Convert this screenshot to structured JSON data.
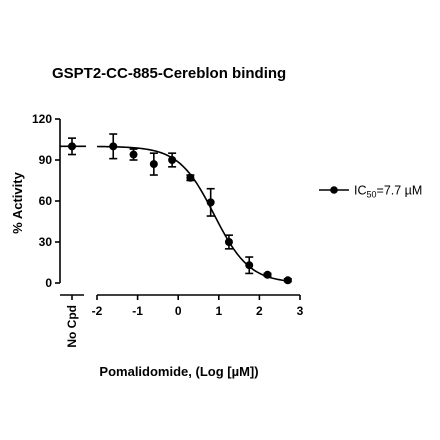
{
  "chart_data": {
    "type": "scatter",
    "title": "GSPT2-CC-885-Cereblon binding",
    "xlabel": "Pomalidomide, (Log [µM])",
    "ylabel": "% Activity",
    "xlim": [
      -2,
      3
    ],
    "ylim": [
      0,
      120
    ],
    "xticks": [
      "-2",
      "-1",
      "0",
      "1",
      "2",
      "3"
    ],
    "yticks": [
      "0",
      "30",
      "60",
      "90",
      "120"
    ],
    "control": {
      "label": "No Cpd",
      "value": 100,
      "error": 6
    },
    "series": [
      {
        "legend_prefix": "IC",
        "legend_sub": "50",
        "legend_suffix": "=7.7 µM",
        "ic50_log": 0.886,
        "hill_slope": -1,
        "top": 100,
        "bottom": 0,
        "color": "#000000",
        "points": [
          {
            "x": -1.6,
            "y": 100,
            "err": 9
          },
          {
            "x": -1.1,
            "y": 94,
            "err": 4
          },
          {
            "x": -0.6,
            "y": 87,
            "err": 8
          },
          {
            "x": -0.15,
            "y": 90,
            "err": 5
          },
          {
            "x": 0.3,
            "y": 77,
            "err": 2
          },
          {
            "x": 0.8,
            "y": 59,
            "err": 10
          },
          {
            "x": 1.25,
            "y": 30,
            "err": 5
          },
          {
            "x": 1.75,
            "y": 13,
            "err": 6
          },
          {
            "x": 2.2,
            "y": 6,
            "err": 1
          },
          {
            "x": 2.7,
            "y": 2,
            "err": 1
          }
        ]
      }
    ]
  }
}
